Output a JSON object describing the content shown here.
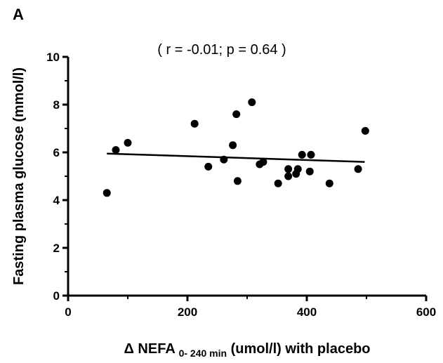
{
  "chart_data": {
    "type": "scatter",
    "panel_label": "A",
    "annotation": "( r = -0.01; p = 0.64 )",
    "ylabel": "Fasting plasma glucose (mmol/l)",
    "xlabel": {
      "main": "Δ NEFA",
      "subscript": "0- 240 min",
      "unit": "(umol/l) with placebo"
    },
    "x": [
      65,
      80,
      100,
      212,
      235,
      261,
      276,
      282,
      284,
      308,
      321,
      327,
      352,
      369,
      369,
      382,
      385,
      392,
      405,
      407,
      438,
      486,
      498
    ],
    "values": [
      4.3,
      6.1,
      6.4,
      7.2,
      5.4,
      5.7,
      6.3,
      7.6,
      4.8,
      8.1,
      5.5,
      5.6,
      4.7,
      5.3,
      5.0,
      5.1,
      5.3,
      5.9,
      5.2,
      5.9,
      4.7,
      5.3,
      6.9
    ],
    "color": "#000000",
    "trend_line": {
      "x": [
        65,
        497
      ],
      "values": [
        5.95,
        5.6
      ]
    },
    "xlim": [
      0,
      600
    ],
    "ylim": [
      0,
      10
    ],
    "xticks": [
      0,
      200,
      400,
      600
    ],
    "yticks": [
      0,
      2,
      4,
      6,
      8,
      10
    ],
    "xminorticks": [
      100,
      300,
      500
    ],
    "yminorticks": [
      1,
      3,
      5,
      7,
      9
    ],
    "grid": false
  }
}
